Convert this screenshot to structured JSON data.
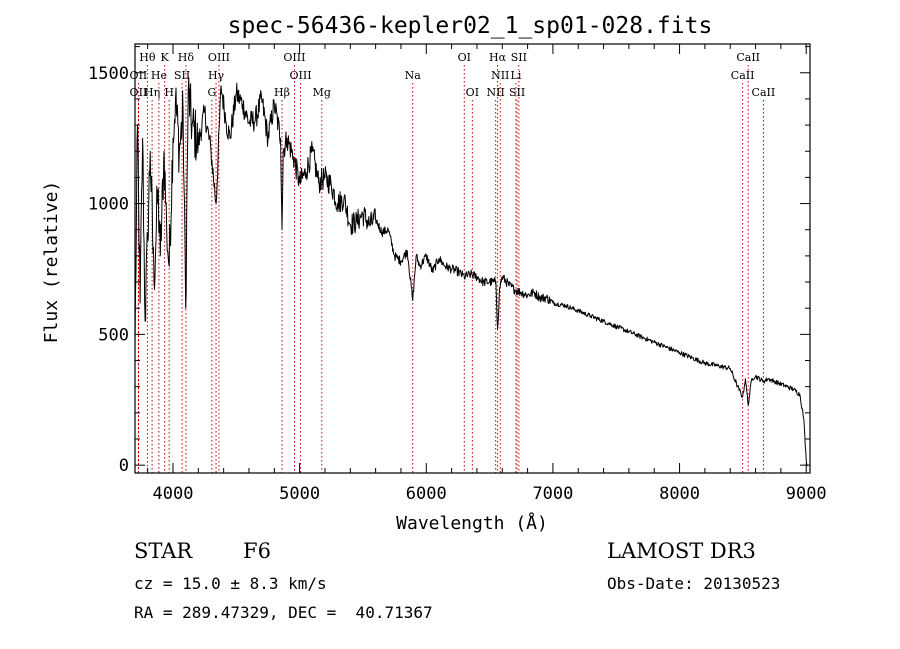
{
  "chart_data": {
    "type": "line",
    "title": "spec-56436-kepler02_1_sp01-028.fits",
    "xlabel": "Wavelength (Å)",
    "ylabel": "Flux (relative)",
    "xlim": [
      3700,
      9030
    ],
    "ylim": [
      -30,
      1610
    ],
    "xticks": [
      4000,
      5000,
      6000,
      7000,
      8000,
      9000
    ],
    "yticks": [
      0,
      500,
      1000,
      1500
    ],
    "xtick_labels": [
      "4000",
      "5000",
      "6000",
      "7000",
      "8000",
      "9000"
    ],
    "ytick_labels": [
      "0",
      "500",
      "1000",
      "1500"
    ],
    "series": [
      {
        "name": "flux",
        "color": "#000000",
        "x": [
          3700,
          3720,
          3740,
          3760,
          3780,
          3800,
          3820,
          3850,
          3880,
          3900,
          3930,
          3950,
          3970,
          4000,
          4020,
          4050,
          4080,
          4100,
          4120,
          4150,
          4200,
          4250,
          4300,
          4340,
          4380,
          4420,
          4450,
          4500,
          4550,
          4600,
          4650,
          4700,
          4750,
          4800,
          4850,
          4861,
          4870,
          4900,
          4950,
          5000,
          5050,
          5100,
          5150,
          5200,
          5250,
          5300,
          5350,
          5400,
          5450,
          5500,
          5550,
          5600,
          5650,
          5700,
          5750,
          5800,
          5850,
          5893,
          5920,
          5950,
          6000,
          6050,
          6100,
          6150,
          6200,
          6250,
          6300,
          6350,
          6400,
          6450,
          6500,
          6550,
          6563,
          6580,
          6600,
          6650,
          6700,
          6750,
          6800,
          6850,
          6900,
          6950,
          7000,
          7100,
          7200,
          7300,
          7400,
          7500,
          7600,
          7700,
          7800,
          7900,
          8000,
          8100,
          8200,
          8300,
          8400,
          8450,
          8498,
          8520,
          8542,
          8570,
          8600,
          8662,
          8700,
          8750,
          8800,
          8850,
          8900,
          8950,
          8980,
          9000,
          9010
        ],
        "y": [
          450,
          1300,
          620,
          1250,
          550,
          880,
          1200,
          700,
          1050,
          800,
          1200,
          900,
          760,
          1250,
          1400,
          1200,
          1350,
          600,
          1430,
          1300,
          1230,
          1350,
          1200,
          1000,
          1450,
          1310,
          1250,
          1420,
          1380,
          1310,
          1320,
          1400,
          1250,
          1380,
          1250,
          900,
          1200,
          1250,
          1180,
          1080,
          1120,
          1200,
          1080,
          1100,
          1070,
          1000,
          1020,
          920,
          930,
          960,
          920,
          940,
          890,
          900,
          800,
          780,
          820,
          630,
          800,
          760,
          800,
          740,
          790,
          760,
          750,
          740,
          720,
          730,
          720,
          700,
          700,
          700,
          520,
          680,
          720,
          690,
          670,
          660,
          650,
          660,
          640,
          640,
          620,
          610,
          590,
          570,
          550,
          530,
          510,
          490,
          470,
          450,
          430,
          410,
          390,
          380,
          370,
          310,
          260,
          330,
          230,
          330,
          340,
          320,
          330,
          320,
          310,
          300,
          290,
          270,
          180,
          20,
          0
        ]
      }
    ],
    "spectral_lines": [
      {
        "label": "Hθ",
        "x": 3798,
        "row": 1
      },
      {
        "label": "K",
        "x": 3934,
        "row": 1
      },
      {
        "label": "Hδ",
        "x": 4102,
        "row": 1
      },
      {
        "label": "OIII",
        "x": 4363,
        "row": 1
      },
      {
        "label": "OIII",
        "x": 4959,
        "row": 1
      },
      {
        "label": "OI",
        "x": 6300,
        "row": 1
      },
      {
        "label": "Hα",
        "x": 6563,
        "row": 1
      },
      {
        "label": "SII",
        "x": 6731,
        "row": 1
      },
      {
        "label": "CaII",
        "x": 8542,
        "row": 1
      },
      {
        "label": "OII",
        "x": 3727,
        "row": 2
      },
      {
        "label": "He",
        "x": 3889,
        "row": 2
      },
      {
        "label": "SII",
        "x": 4072,
        "row": 2
      },
      {
        "label": "Hγ",
        "x": 4340,
        "row": 2
      },
      {
        "label": "OIII",
        "x": 5007,
        "row": 2
      },
      {
        "label": "Na",
        "x": 5893,
        "row": 2
      },
      {
        "label": "NII",
        "x": 6584,
        "row": 2
      },
      {
        "label": "Li",
        "x": 6708,
        "row": 2
      },
      {
        "label": "CaII",
        "x": 8498,
        "row": 2
      },
      {
        "label": "OII",
        "x": 3727,
        "row": 3
      },
      {
        "label": "Hη",
        "x": 3835,
        "row": 3
      },
      {
        "label": "H",
        "x": 3970,
        "row": 3
      },
      {
        "label": "G",
        "x": 4307,
        "row": 3
      },
      {
        "label": "Hβ",
        "x": 4861,
        "row": 3
      },
      {
        "label": "Mg",
        "x": 5175,
        "row": 3
      },
      {
        "label": "OI",
        "x": 6364,
        "row": 3
      },
      {
        "label": "NII",
        "x": 6548,
        "row": 3
      },
      {
        "label": "SII",
        "x": 6717,
        "row": 3
      },
      {
        "label": "CaII",
        "x": 8662,
        "row": 3
      }
    ],
    "line_color": "#cc0000",
    "grid": false,
    "legend": "none"
  },
  "info": {
    "object_class": "STAR",
    "subclass": "F6",
    "survey": "LAMOST DR3",
    "redshift": "cz = 15.0 ± 8.3 km/s",
    "obs_date": "Obs-Date: 20130523",
    "coords": "RA = 289.47329, DEC =  40.71367"
  }
}
